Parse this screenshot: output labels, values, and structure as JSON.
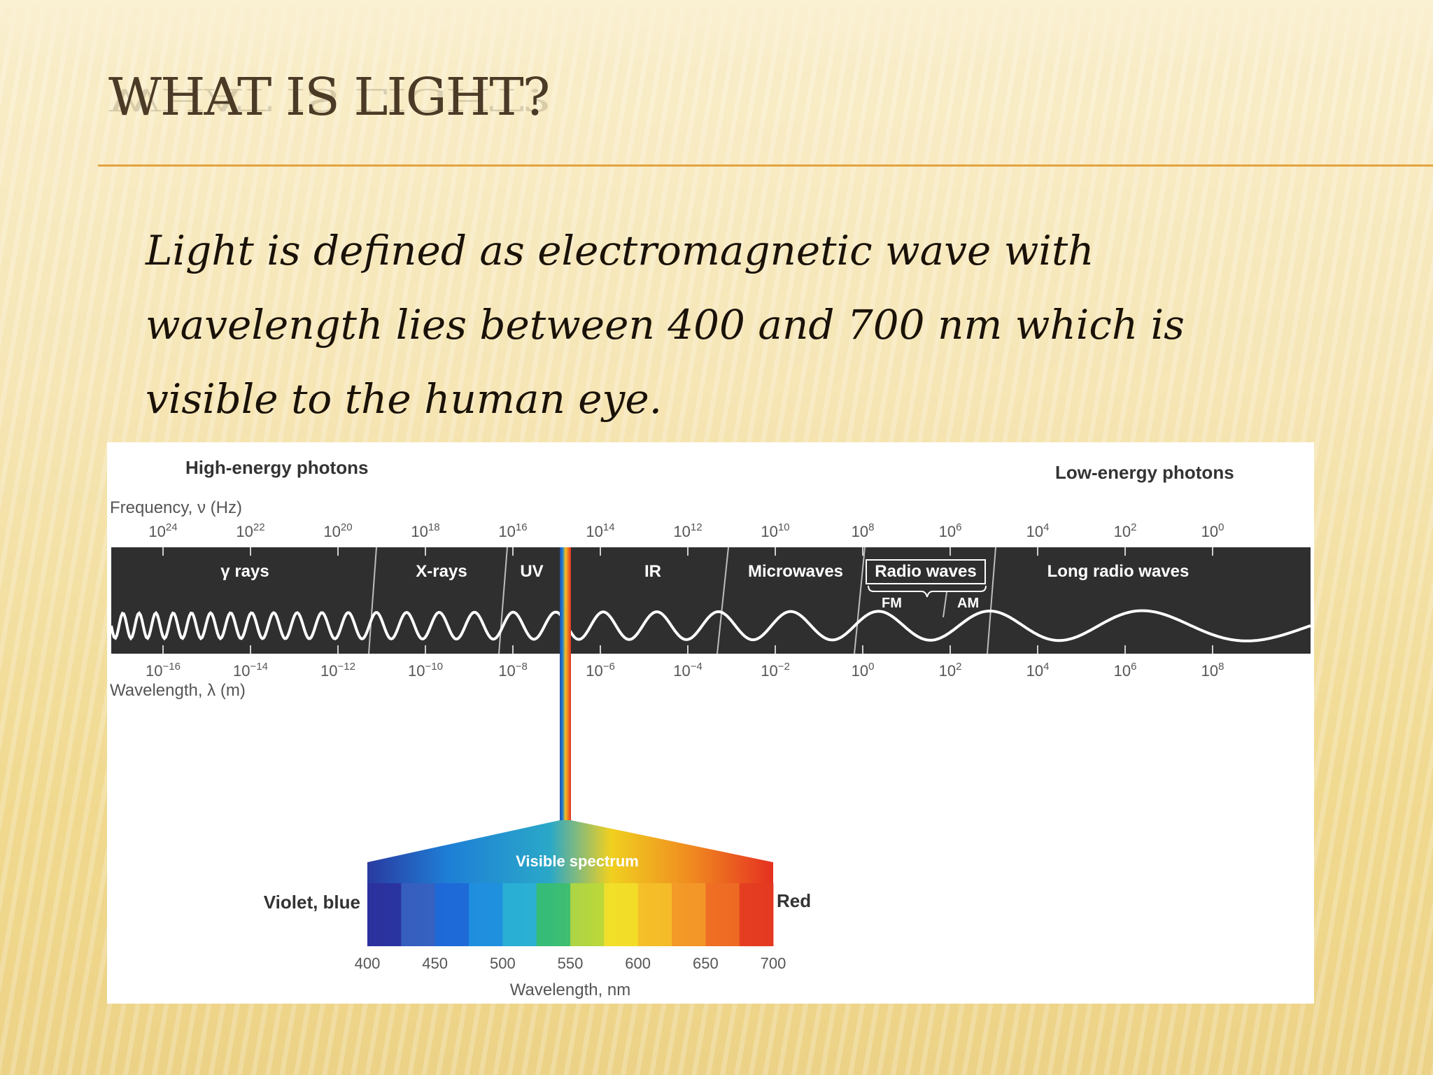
{
  "slide": {
    "title": "WHAT IS LIGHT?",
    "body": "Light is defined as electromagnetic wave with wavelength lies  between 400 and 700 nm which is visible to the human eye."
  },
  "diagram": {
    "high_energy_label": "High-energy photons",
    "low_energy_label": "Low-energy photons",
    "frequency_axis_label": "Frequency, ν (Hz)",
    "frequency_ticks": [
      {
        "base": "10",
        "exp": "24"
      },
      {
        "base": "10",
        "exp": "22"
      },
      {
        "base": "10",
        "exp": "20"
      },
      {
        "base": "10",
        "exp": "18"
      },
      {
        "base": "10",
        "exp": "16"
      },
      {
        "base": "10",
        "exp": "14"
      },
      {
        "base": "10",
        "exp": "12"
      },
      {
        "base": "10",
        "exp": "10"
      },
      {
        "base": "10",
        "exp": "8"
      },
      {
        "base": "10",
        "exp": "6"
      },
      {
        "base": "10",
        "exp": "4"
      },
      {
        "base": "10",
        "exp": "2"
      },
      {
        "base": "10",
        "exp": "0"
      }
    ],
    "bands": [
      {
        "id": "gamma",
        "label": "γ rays"
      },
      {
        "id": "xrays",
        "label": "X-rays"
      },
      {
        "id": "uv",
        "label": "UV"
      },
      {
        "id": "ir",
        "label": "IR"
      },
      {
        "id": "microwaves",
        "label": "Microwaves"
      },
      {
        "id": "radio",
        "label": "Radio waves"
      },
      {
        "id": "longradio",
        "label": "Long radio waves"
      }
    ],
    "sub_bands": {
      "fm": "FM",
      "am": "AM"
    },
    "wavelength_ticks": [
      {
        "base": "10",
        "exp": "−16"
      },
      {
        "base": "10",
        "exp": "−14"
      },
      {
        "base": "10",
        "exp": "−12"
      },
      {
        "base": "10",
        "exp": "−10"
      },
      {
        "base": "10",
        "exp": "−8"
      },
      {
        "base": "10",
        "exp": "−6"
      },
      {
        "base": "10",
        "exp": "−4"
      },
      {
        "base": "10",
        "exp": "−2"
      },
      {
        "base": "10",
        "exp": "0"
      },
      {
        "base": "10",
        "exp": "2"
      },
      {
        "base": "10",
        "exp": "4"
      },
      {
        "base": "10",
        "exp": "6"
      },
      {
        "base": "10",
        "exp": "8"
      }
    ],
    "wavelength_axis_label": "Wavelength, λ (m)",
    "visible": {
      "title": "Visible spectrum",
      "left_label": "Violet, blue",
      "right_label": "Red",
      "ticks": [
        "400",
        "450",
        "500",
        "550",
        "600",
        "650",
        "700"
      ],
      "axis_label": "Wavelength, nm"
    },
    "colors": {
      "band_background": "#2f2f2f",
      "band_text": "#ffffff",
      "wave": "#ffffff"
    }
  }
}
